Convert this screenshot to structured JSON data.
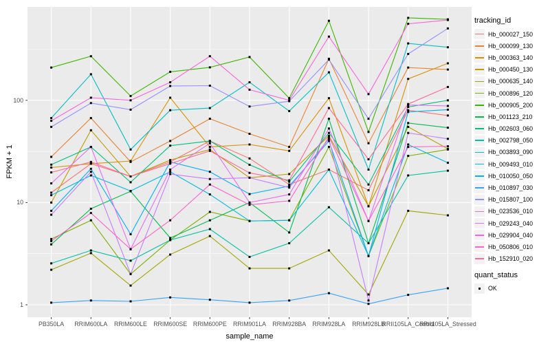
{
  "figure": {
    "y_axis": {
      "title": "FPKM + 1"
    },
    "x_axis": {
      "title": "sample_name"
    },
    "legend": {
      "tracking_title": "tracking_id",
      "quant_title": "quant_status",
      "quant_label": "OK"
    }
  },
  "chart_data": {
    "type": "line",
    "title": "",
    "xlabel": "sample_name",
    "ylabel": "FPKM + 1",
    "y_scale": "log10",
    "ylim": [
      0.76,
      824
    ],
    "yticks": [
      1,
      10,
      100
    ],
    "ytick_labels": [
      "1",
      "10",
      "100"
    ],
    "minor_gridlines": [
      3.162,
      31.62,
      316.2
    ],
    "grid": true,
    "legend_position": "right",
    "panel_bg": "#EBEBEB",
    "gridline_color": "#FFFFFF",
    "point_color": "#000000",
    "point_shape": "square",
    "quant_status": "OK",
    "categories": [
      "PB350LA",
      "RRIM600LA",
      "RRIM600LE",
      "RRIM600SE",
      "RRIM600PE",
      "RRIM901LA",
      "RRIM928BA",
      "RRIM928LA",
      "RRIM928LB",
      "RRII105LA_Control",
      "RRII105LA_Stressed"
    ],
    "series": [
      {
        "name": "Hb_000027_150",
        "color": "#F8766D",
        "values": [
          12.5,
          24,
          18,
          25,
          40,
          27,
          15,
          21,
          13.2,
          80,
          71
        ]
      },
      {
        "name": "Hb_000099_130",
        "color": "#EA8331",
        "values": [
          28,
          67,
          25,
          40,
          66,
          47,
          35,
          255,
          38,
          209,
          200
        ]
      },
      {
        "name": "Hb_000363_140",
        "color": "#D89000",
        "values": [
          22,
          24,
          25.5,
          106,
          35,
          37,
          32,
          105,
          9.2,
          162,
          230
        ]
      },
      {
        "name": "Hb_000450_130",
        "color": "#C09B00",
        "values": [
          10,
          51,
          18,
          26,
          33,
          17.5,
          19,
          45,
          9.2,
          55,
          33.5
        ]
      },
      {
        "name": "Hb_000635_140",
        "color": "#A3A500",
        "values": [
          2.2,
          3.2,
          1.54,
          3.1,
          4.7,
          2.27,
          2.27,
          3.4,
          1.26,
          8.3,
          7.5
        ]
      },
      {
        "name": "Hb_000896_120",
        "color": "#7CAE00",
        "values": [
          4.4,
          6.7,
          2.0,
          4.3,
          8.1,
          6.6,
          6.7,
          35,
          3.0,
          28.6,
          33
        ]
      },
      {
        "name": "Hb_000905_200",
        "color": "#39B600",
        "values": [
          209,
          270,
          110,
          190,
          210,
          265,
          105,
          600,
          49,
          640,
          620
        ]
      },
      {
        "name": "Hb_001123_210",
        "color": "#00BB4E",
        "values": [
          3.9,
          8.7,
          12.9,
          4.5,
          6.7,
          10,
          5.1,
          66,
          4.0,
          60,
          54
        ]
      },
      {
        "name": "Hb_002603_060",
        "color": "#00BF7D",
        "values": [
          23.5,
          35,
          15.8,
          36,
          40,
          23.4,
          16,
          48,
          15,
          86,
          100
        ]
      },
      {
        "name": "Hb_002798_050",
        "color": "#00C1A3",
        "values": [
          2.54,
          3.4,
          2.7,
          4.3,
          5.5,
          2.94,
          4.0,
          9,
          4.0,
          18.4,
          20.5
        ]
      },
      {
        "name": "Hb_003893_090",
        "color": "#00BFC4",
        "values": [
          67,
          180,
          33,
          80,
          84,
          150,
          78.5,
          188,
          21,
          360,
          330
        ]
      },
      {
        "name": "Hb_009493_010",
        "color": "#00BAE0",
        "values": [
          11.8,
          18.4,
          13,
          20,
          12,
          6.6,
          6.7,
          21,
          3.0,
          37,
          24.5
        ]
      },
      {
        "name": "Hb_010050_050",
        "color": "#00B0F6",
        "values": [
          8.3,
          21.4,
          4.9,
          25,
          20,
          12.1,
          14.5,
          40,
          3.0,
          77,
          81
        ]
      },
      {
        "name": "Hb_010897_030",
        "color": "#35A2FF",
        "values": [
          1.05,
          1.1,
          1.08,
          1.18,
          1.12,
          1.05,
          1.1,
          1.3,
          1.02,
          1.25,
          1.45
        ]
      },
      {
        "name": "Hb_015807_100",
        "color": "#9590FF",
        "values": [
          55,
          94,
          81,
          138,
          139,
          87,
          98,
          250,
          66,
          284,
          505
        ]
      },
      {
        "name": "Hb_023536_010",
        "color": "#C77CFF",
        "values": [
          7.6,
          20,
          2.0,
          19,
          17,
          17.5,
          14,
          42,
          1.1,
          48,
          42
        ]
      },
      {
        "name": "Hb_029243_040",
        "color": "#E76BF3",
        "values": [
          15.4,
          35,
          3.5,
          21,
          38,
          10,
          12,
          53,
          6.6,
          90,
          88
        ]
      },
      {
        "name": "Hb_029904_040",
        "color": "#FA62DB",
        "values": [
          63,
          106,
          100,
          150,
          270,
          127,
          100,
          420,
          115,
          560,
          610
        ]
      },
      {
        "name": "Hb_050806_010",
        "color": "#FF61CC",
        "values": [
          4.2,
          7.9,
          3.5,
          6.7,
          15,
          9.5,
          10.4,
          44,
          6.6,
          35,
          35.5
        ]
      },
      {
        "name": "Hb_152910_020",
        "color": "#FF6A98",
        "values": [
          19.7,
          25,
          18,
          24,
          32,
          19.5,
          16.5,
          84,
          26.5,
          92,
          135
        ]
      }
    ]
  }
}
